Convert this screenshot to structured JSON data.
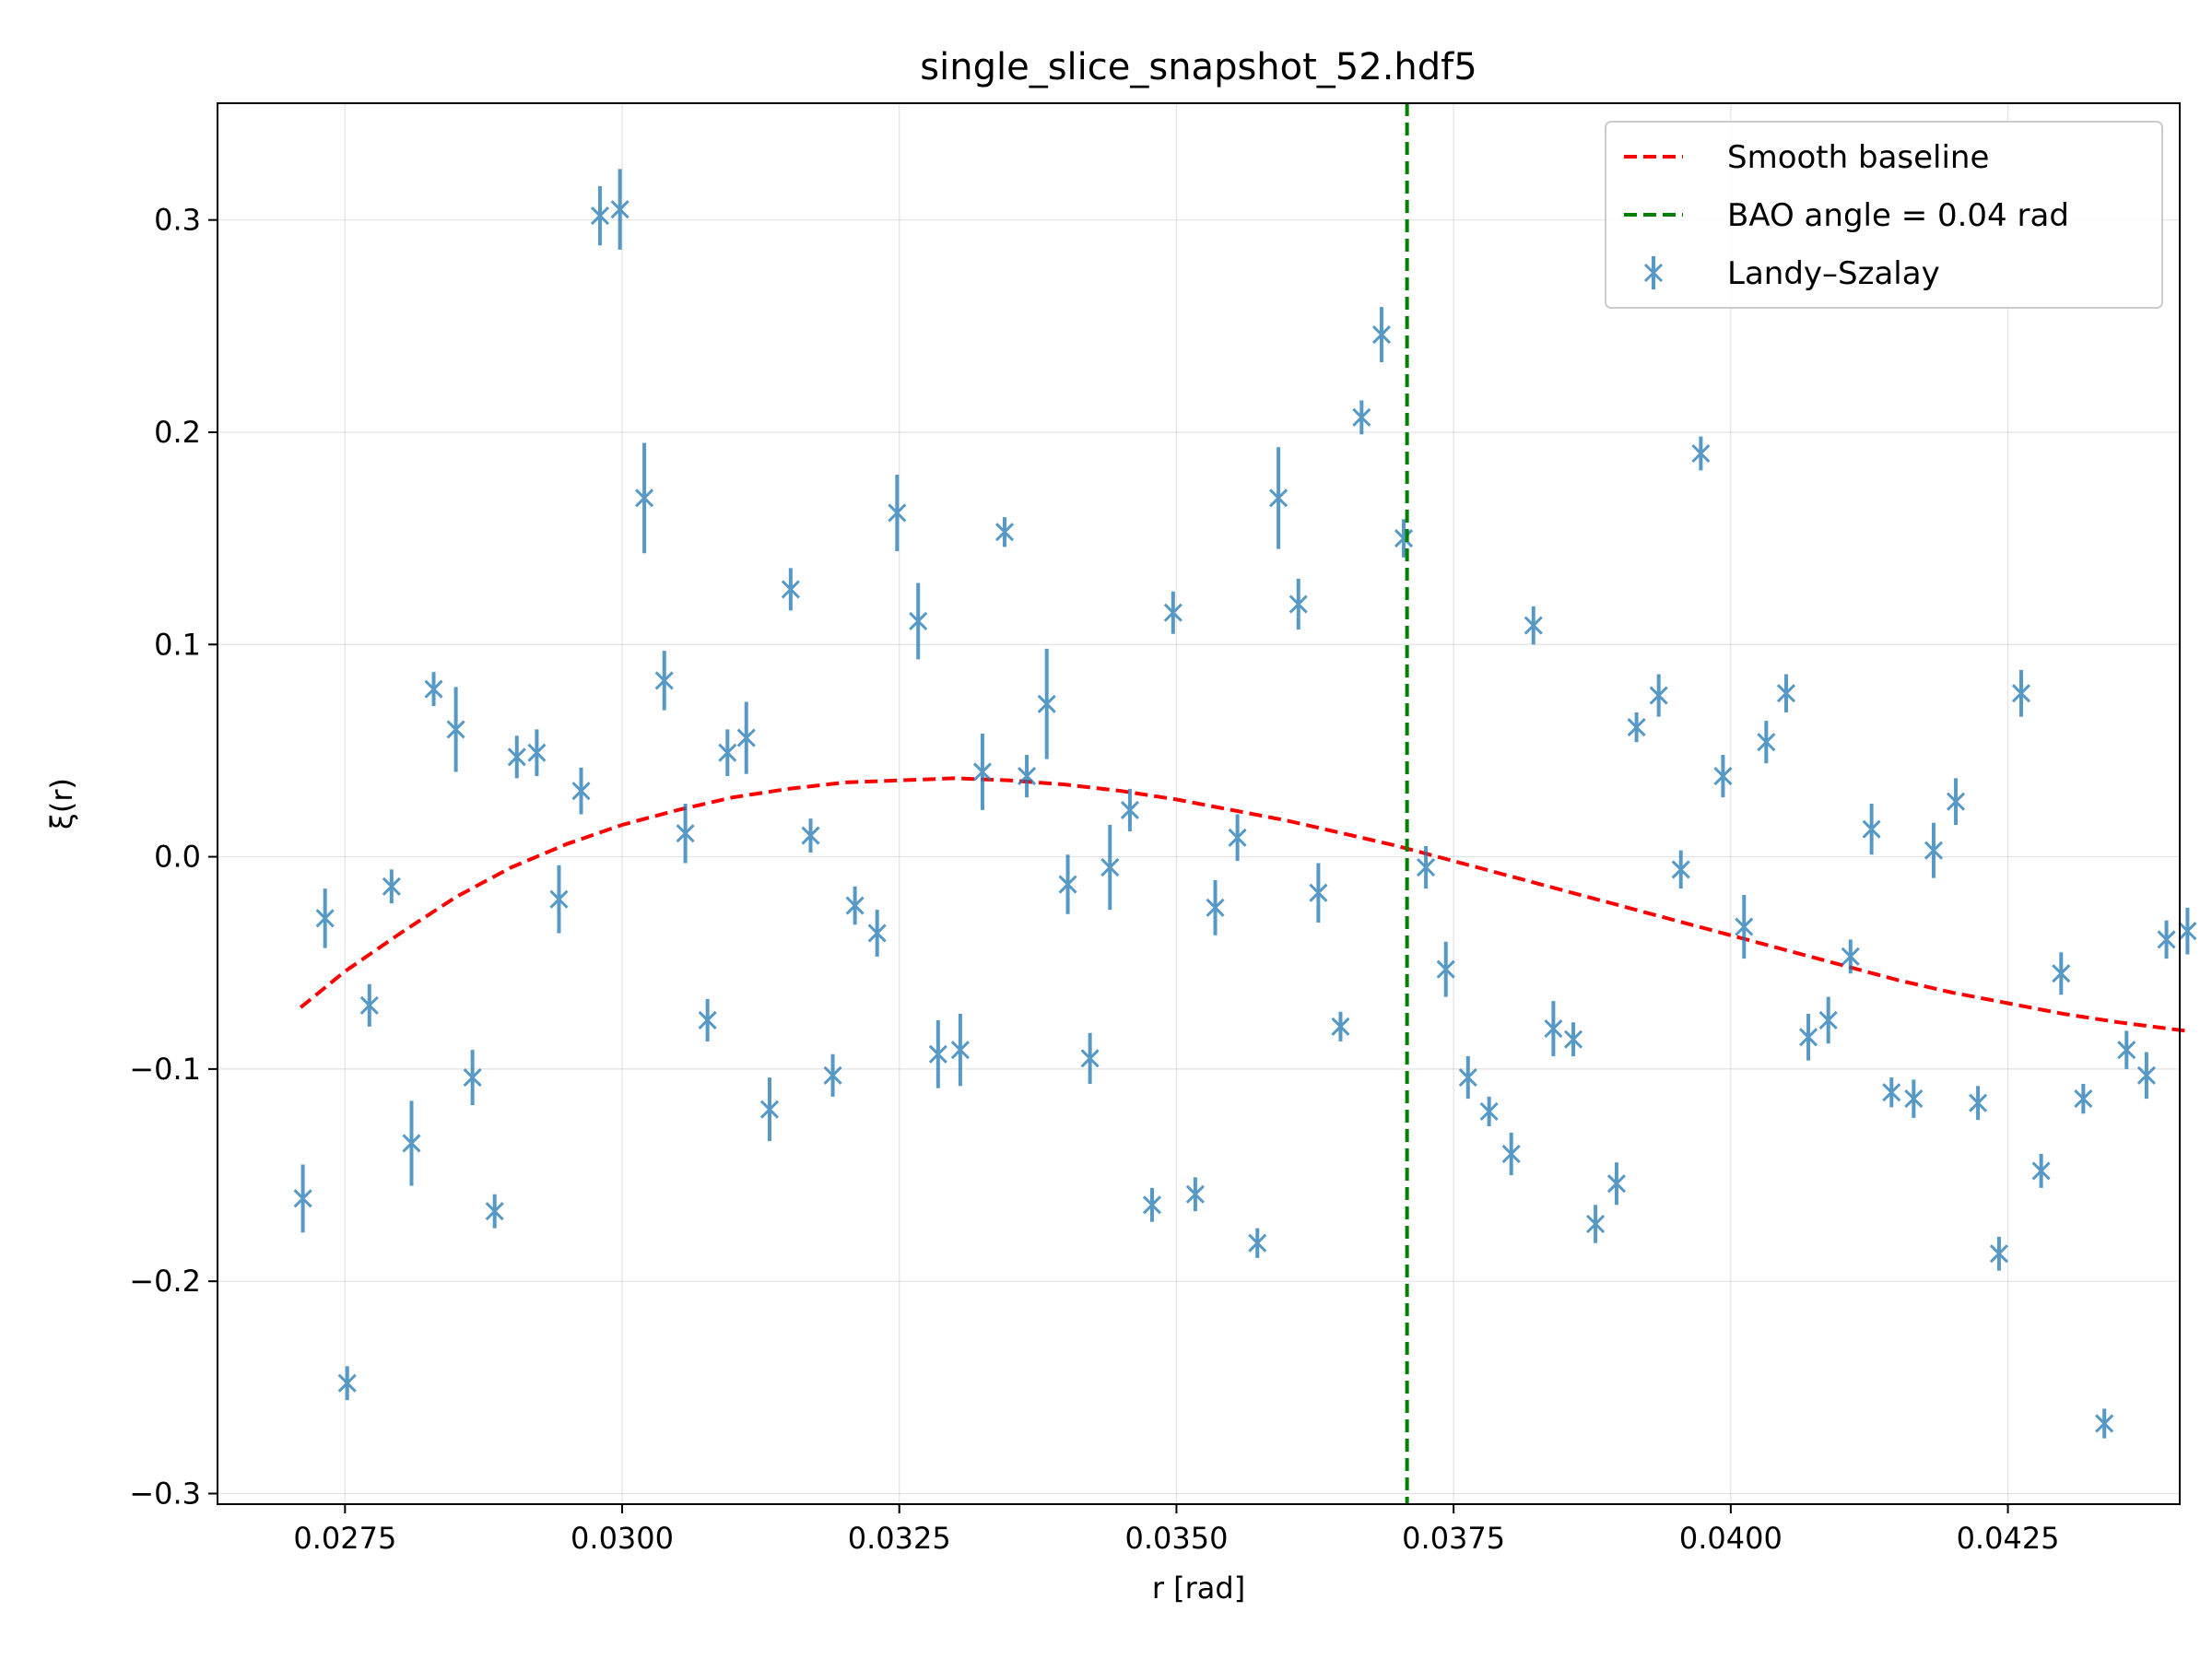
{
  "chart_data": {
    "type": "scatter",
    "title": "single_slice_snapshot_52.hdf5",
    "xlabel": "r [rad]",
    "ylabel": "ξ(r)",
    "xlim": [
      0.02635,
      0.04405
    ],
    "ylim": [
      -0.305,
      0.355
    ],
    "grid": true,
    "legend_position": "top-right",
    "xticks": [
      "0.0275",
      "0.0300",
      "0.0325",
      "0.0350",
      "0.0375",
      "0.0400",
      "0.0425"
    ],
    "yticks": [
      "−0.3",
      "−0.2",
      "−0.1",
      "0.0",
      "0.1",
      "0.2",
      "0.3"
    ],
    "legend": [
      {
        "label": "Smooth baseline",
        "style": "dashed-line",
        "color": "#ff0000"
      },
      {
        "label": "BAO angle = 0.04 rad",
        "style": "dashed-line",
        "color": "#008000"
      },
      {
        "label": "Landy–Szalay",
        "style": "errorbar-x-marker",
        "color": "#1f77b4"
      }
    ],
    "bao_angle": 0.03708,
    "baseline": {
      "name": "Smooth baseline",
      "color": "#ff0000",
      "x": [
        0.0271,
        0.0275,
        0.028,
        0.0285,
        0.029,
        0.0295,
        0.03,
        0.0305,
        0.031,
        0.0315,
        0.032,
        0.0325,
        0.033,
        0.0335,
        0.034,
        0.0345,
        0.035,
        0.0355,
        0.036,
        0.0365,
        0.037,
        0.0375,
        0.038,
        0.0385,
        0.039,
        0.0395,
        0.04,
        0.0405,
        0.041,
        0.0415,
        0.042,
        0.0425,
        0.043,
        0.0435,
        0.0441
      ],
      "y": [
        -0.071,
        -0.054,
        -0.036,
        -0.019,
        -0.005,
        0.006,
        0.015,
        0.022,
        0.028,
        0.032,
        0.035,
        0.036,
        0.037,
        0.036,
        0.034,
        0.031,
        0.027,
        0.022,
        0.017,
        0.011,
        0.005,
        -0.002,
        -0.009,
        -0.016,
        -0.023,
        -0.03,
        -0.037,
        -0.044,
        -0.051,
        -0.058,
        -0.064,
        -0.069,
        -0.074,
        -0.078,
        -0.082
      ]
    },
    "series": [
      {
        "name": "Landy–Szalay",
        "color": "#1f77b4",
        "points": [
          {
            "x": 0.02712,
            "y": -0.161,
            "err": 0.016
          },
          {
            "x": 0.02732,
            "y": -0.029,
            "err": 0.014
          },
          {
            "x": 0.02752,
            "y": -0.248,
            "err": 0.008
          },
          {
            "x": 0.02772,
            "y": -0.07,
            "err": 0.01
          },
          {
            "x": 0.02792,
            "y": -0.014,
            "err": 0.008
          },
          {
            "x": 0.0281,
            "y": -0.135,
            "err": 0.02
          },
          {
            "x": 0.0283,
            "y": 0.079,
            "err": 0.008
          },
          {
            "x": 0.0285,
            "y": 0.06,
            "err": 0.02
          },
          {
            "x": 0.02865,
            "y": -0.104,
            "err": 0.013
          },
          {
            "x": 0.02885,
            "y": -0.167,
            "err": 0.008
          },
          {
            "x": 0.02905,
            "y": 0.047,
            "err": 0.01
          },
          {
            "x": 0.02923,
            "y": 0.049,
            "err": 0.011
          },
          {
            "x": 0.02943,
            "y": -0.02,
            "err": 0.016
          },
          {
            "x": 0.02963,
            "y": 0.031,
            "err": 0.011
          },
          {
            "x": 0.0298,
            "y": 0.302,
            "err": 0.014
          },
          {
            "x": 0.02998,
            "y": 0.305,
            "err": 0.019
          },
          {
            "x": 0.0302,
            "y": 0.169,
            "err": 0.026
          },
          {
            "x": 0.03038,
            "y": 0.083,
            "err": 0.014
          },
          {
            "x": 0.03057,
            "y": 0.011,
            "err": 0.014
          },
          {
            "x": 0.03077,
            "y": -0.077,
            "err": 0.01
          },
          {
            "x": 0.03095,
            "y": 0.049,
            "err": 0.011
          },
          {
            "x": 0.03112,
            "y": 0.056,
            "err": 0.017
          },
          {
            "x": 0.03133,
            "y": -0.119,
            "err": 0.015
          },
          {
            "x": 0.03152,
            "y": 0.126,
            "err": 0.01
          },
          {
            "x": 0.0317,
            "y": 0.01,
            "err": 0.008
          },
          {
            "x": 0.0319,
            "y": -0.103,
            "err": 0.01
          },
          {
            "x": 0.0321,
            "y": -0.023,
            "err": 0.009
          },
          {
            "x": 0.0323,
            "y": -0.036,
            "err": 0.011
          },
          {
            "x": 0.03248,
            "y": 0.162,
            "err": 0.018
          },
          {
            "x": 0.03267,
            "y": 0.111,
            "err": 0.018
          },
          {
            "x": 0.03285,
            "y": -0.093,
            "err": 0.016
          },
          {
            "x": 0.03305,
            "y": -0.091,
            "err": 0.017
          },
          {
            "x": 0.03325,
            "y": 0.04,
            "err": 0.018
          },
          {
            "x": 0.03345,
            "y": 0.153,
            "err": 0.007
          },
          {
            "x": 0.03365,
            "y": 0.038,
            "err": 0.01
          },
          {
            "x": 0.03383,
            "y": 0.072,
            "err": 0.026
          },
          {
            "x": 0.03402,
            "y": -0.013,
            "err": 0.014
          },
          {
            "x": 0.03422,
            "y": -0.095,
            "err": 0.012
          },
          {
            "x": 0.0344,
            "y": -0.005,
            "err": 0.02
          },
          {
            "x": 0.03458,
            "y": 0.022,
            "err": 0.01
          },
          {
            "x": 0.03478,
            "y": -0.164,
            "err": 0.008
          },
          {
            "x": 0.03497,
            "y": 0.115,
            "err": 0.01
          },
          {
            "x": 0.03517,
            "y": -0.159,
            "err": 0.008
          },
          {
            "x": 0.03535,
            "y": -0.024,
            "err": 0.013
          },
          {
            "x": 0.03555,
            "y": 0.009,
            "err": 0.011
          },
          {
            "x": 0.03573,
            "y": -0.182,
            "err": 0.007
          },
          {
            "x": 0.03592,
            "y": 0.169,
            "err": 0.024
          },
          {
            "x": 0.0361,
            "y": 0.119,
            "err": 0.012
          },
          {
            "x": 0.03628,
            "y": -0.017,
            "err": 0.014
          },
          {
            "x": 0.03648,
            "y": -0.08,
            "err": 0.007
          },
          {
            "x": 0.03667,
            "y": 0.207,
            "err": 0.008
          },
          {
            "x": 0.03685,
            "y": 0.246,
            "err": 0.013
          },
          {
            "x": 0.03705,
            "y": 0.15,
            "err": 0.009
          },
          {
            "x": 0.03725,
            "y": -0.005,
            "err": 0.01
          },
          {
            "x": 0.03743,
            "y": -0.053,
            "err": 0.013
          },
          {
            "x": 0.03763,
            "y": -0.104,
            "err": 0.01
          },
          {
            "x": 0.03782,
            "y": -0.12,
            "err": 0.007
          },
          {
            "x": 0.03802,
            "y": -0.14,
            "err": 0.01
          },
          {
            "x": 0.03822,
            "y": 0.109,
            "err": 0.009
          },
          {
            "x": 0.0384,
            "y": -0.081,
            "err": 0.013
          },
          {
            "x": 0.03858,
            "y": -0.086,
            "err": 0.008
          },
          {
            "x": 0.03878,
            "y": -0.173,
            "err": 0.009
          },
          {
            "x": 0.03897,
            "y": -0.154,
            "err": 0.01
          },
          {
            "x": 0.03915,
            "y": 0.061,
            "err": 0.007
          },
          {
            "x": 0.03935,
            "y": 0.076,
            "err": 0.01
          },
          {
            "x": 0.03955,
            "y": -0.006,
            "err": 0.009
          },
          {
            "x": 0.03973,
            "y": 0.19,
            "err": 0.008
          },
          {
            "x": 0.03993,
            "y": 0.038,
            "err": 0.01
          },
          {
            "x": 0.04012,
            "y": -0.033,
            "err": 0.015
          },
          {
            "x": 0.04032,
            "y": 0.054,
            "err": 0.01
          },
          {
            "x": 0.0405,
            "y": 0.077,
            "err": 0.009
          },
          {
            "x": 0.0407,
            "y": -0.085,
            "err": 0.011
          },
          {
            "x": 0.04088,
            "y": -0.077,
            "err": 0.011
          },
          {
            "x": 0.04108,
            "y": -0.047,
            "err": 0.008
          },
          {
            "x": 0.04127,
            "y": 0.013,
            "err": 0.012
          },
          {
            "x": 0.04145,
            "y": -0.111,
            "err": 0.007
          },
          {
            "x": 0.04165,
            "y": -0.114,
            "err": 0.009
          },
          {
            "x": 0.04183,
            "y": 0.003,
            "err": 0.013
          },
          {
            "x": 0.04203,
            "y": 0.026,
            "err": 0.011
          },
          {
            "x": 0.04223,
            "y": -0.116,
            "err": 0.008
          },
          {
            "x": 0.04242,
            "y": -0.187,
            "err": 0.008
          },
          {
            "x": 0.04262,
            "y": 0.077,
            "err": 0.011
          },
          {
            "x": 0.0428,
            "y": -0.148,
            "err": 0.008
          },
          {
            "x": 0.04298,
            "y": -0.055,
            "err": 0.01
          },
          {
            "x": 0.04318,
            "y": -0.114,
            "err": 0.007
          },
          {
            "x": 0.04337,
            "y": -0.267,
            "err": 0.007
          },
          {
            "x": 0.04357,
            "y": -0.091,
            "err": 0.009
          },
          {
            "x": 0.04375,
            "y": -0.103,
            "err": 0.011
          },
          {
            "x": 0.04393,
            "y": -0.039,
            "err": 0.009
          },
          {
            "x": 0.04412,
            "y": -0.035,
            "err": 0.011
          }
        ]
      }
    ]
  }
}
